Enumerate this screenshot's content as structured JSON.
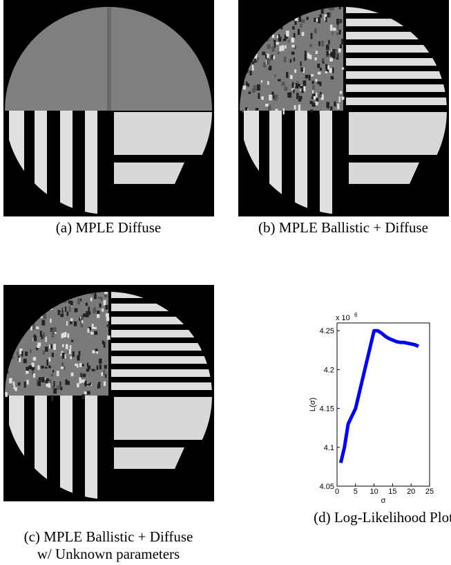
{
  "panels": [
    {
      "caption": "(a) MPLE Diffuse"
    },
    {
      "caption": "(b) MPLE Ballistic + Diffuse"
    },
    {
      "caption_lines": [
        "(c) MPLE Ballistic + Diffuse",
        "w/ Unknown parameters"
      ]
    }
  ],
  "chart_data": {
    "type": "line",
    "caption": "(d) Log-Likelihood Plot",
    "x_label": "σ",
    "y_label": "L(σ)",
    "y_scale": {
      "base": "x 10",
      "exponent": "6"
    },
    "x": [
      1,
      2,
      3,
      4,
      5,
      6,
      7,
      8,
      9,
      10,
      11,
      12,
      13,
      14,
      15,
      16,
      17,
      18,
      19,
      20,
      21,
      22
    ],
    "series": [
      {
        "color": "#0000ff",
        "values": [
          4.08,
          4.1,
          4.13,
          4.14,
          4.15,
          4.17,
          4.19,
          4.21,
          4.23,
          4.25,
          4.25,
          4.247,
          4.243,
          4.24,
          4.238,
          4.236,
          4.235,
          4.235,
          4.234,
          4.233,
          4.232,
          4.23
        ]
      }
    ],
    "xlim": [
      0,
      25
    ],
    "xticks": [
      0,
      5,
      10,
      15,
      20,
      25
    ],
    "ylim": [
      4.05,
      4.26
    ],
    "yticks": [
      4.05,
      4.1,
      4.15,
      4.2,
      4.25
    ]
  }
}
